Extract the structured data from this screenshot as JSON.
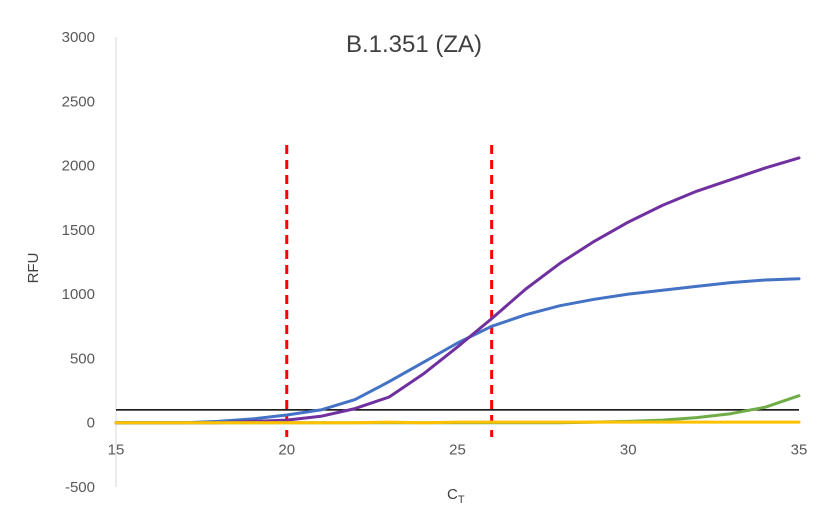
{
  "chart_data": {
    "type": "line",
    "title": "B.1.351 (ZA)",
    "xlabel": "C",
    "xlabel_subscript": "T",
    "ylabel": "RFU",
    "xlim": [
      15,
      35
    ],
    "ylim": [
      -500,
      3000
    ],
    "x_ticks": [
      15,
      20,
      25,
      30,
      35
    ],
    "y_ticks": [
      -500,
      0,
      500,
      1000,
      1500,
      2000,
      2500,
      3000
    ],
    "grid": false,
    "legend": "none",
    "threshold": {
      "y": 100,
      "color": "#000000"
    },
    "vertical_markers": [
      {
        "x": 20,
        "color": "#ff0000",
        "style": "dashed"
      },
      {
        "x": 26,
        "color": "#ff0000",
        "style": "dashed"
      }
    ],
    "series": [
      {
        "color": "#4472c4",
        "x": [
          15,
          16,
          17,
          18,
          19,
          20,
          21,
          22,
          23,
          24,
          25,
          26,
          27,
          28,
          29,
          30,
          31,
          32,
          33,
          34,
          35
        ],
        "values": [
          0,
          0,
          0,
          10,
          30,
          60,
          100,
          180,
          320,
          470,
          620,
          750,
          840,
          910,
          960,
          1000,
          1030,
          1060,
          1090,
          1110,
          1120
        ]
      },
      {
        "color": "#7030a0",
        "x": [
          15,
          16,
          17,
          18,
          19,
          20,
          21,
          22,
          23,
          24,
          25,
          26,
          27,
          28,
          29,
          30,
          31,
          32,
          33,
          34,
          35
        ],
        "values": [
          0,
          0,
          0,
          0,
          10,
          20,
          50,
          110,
          200,
          380,
          590,
          810,
          1040,
          1240,
          1410,
          1560,
          1690,
          1800,
          1890,
          1980,
          2060
        ]
      },
      {
        "color": "#70ad47",
        "x": [
          15,
          16,
          17,
          18,
          19,
          20,
          21,
          22,
          23,
          24,
          25,
          26,
          27,
          28,
          29,
          30,
          31,
          32,
          33,
          34,
          35
        ],
        "values": [
          0,
          0,
          0,
          0,
          0,
          0,
          0,
          0,
          0,
          0,
          0,
          0,
          0,
          0,
          5,
          10,
          20,
          40,
          70,
          120,
          210
        ]
      },
      {
        "color": "#ffc000",
        "x": [
          15,
          16,
          17,
          18,
          19,
          20,
          21,
          22,
          23,
          24,
          25,
          26,
          27,
          28,
          29,
          30,
          31,
          32,
          33,
          34,
          35
        ],
        "values": [
          0,
          0,
          0,
          0,
          0,
          0,
          0,
          0,
          5,
          0,
          5,
          5,
          5,
          5,
          5,
          5,
          5,
          5,
          5,
          5,
          5
        ]
      }
    ]
  }
}
